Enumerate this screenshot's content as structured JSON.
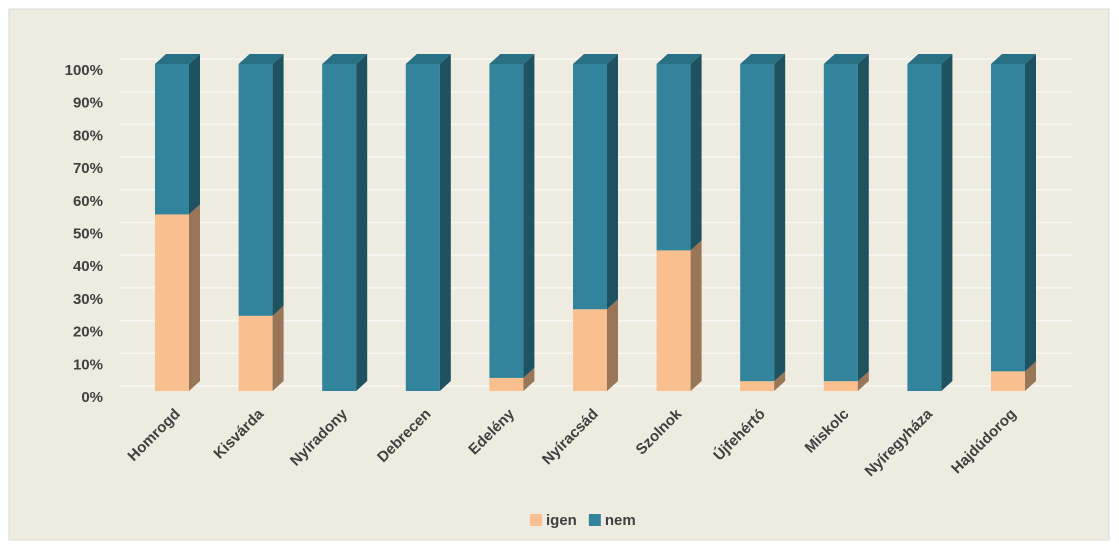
{
  "chart_data": {
    "type": "bar",
    "stacked": true,
    "categories": [
      "Homrogd",
      "Kisvárda",
      "Nyíradony",
      "Debrecen",
      "Edelény",
      "Nyíracsád",
      "Szolnok",
      "Újfehértó",
      "Miskolc",
      "Nyíregyháza",
      "Hajdúdorog"
    ],
    "series": [
      {
        "name": "igen",
        "color": "#f9bf8f",
        "values": [
          54,
          23,
          0,
          0,
          4,
          25,
          43,
          3,
          3,
          0,
          6
        ]
      },
      {
        "name": "nem",
        "color": "#31849b",
        "values": [
          46,
          77,
          100,
          100,
          96,
          75,
          57,
          97,
          97,
          100,
          94
        ]
      }
    ],
    "ylim": [
      0,
      100
    ],
    "yticks": [
      {
        "value": 0,
        "label": "0%"
      },
      {
        "value": 10,
        "label": "10%"
      },
      {
        "value": 20,
        "label": "20%"
      },
      {
        "value": 30,
        "label": "30%"
      },
      {
        "value": 40,
        "label": "40%"
      },
      {
        "value": 50,
        "label": "50%"
      },
      {
        "value": 60,
        "label": "60%"
      },
      {
        "value": 70,
        "label": "70%"
      },
      {
        "value": 80,
        "label": "80%"
      },
      {
        "value": 90,
        "label": "90%"
      },
      {
        "value": 100,
        "label": "100%"
      }
    ],
    "grid": true,
    "legend": "bottom"
  }
}
